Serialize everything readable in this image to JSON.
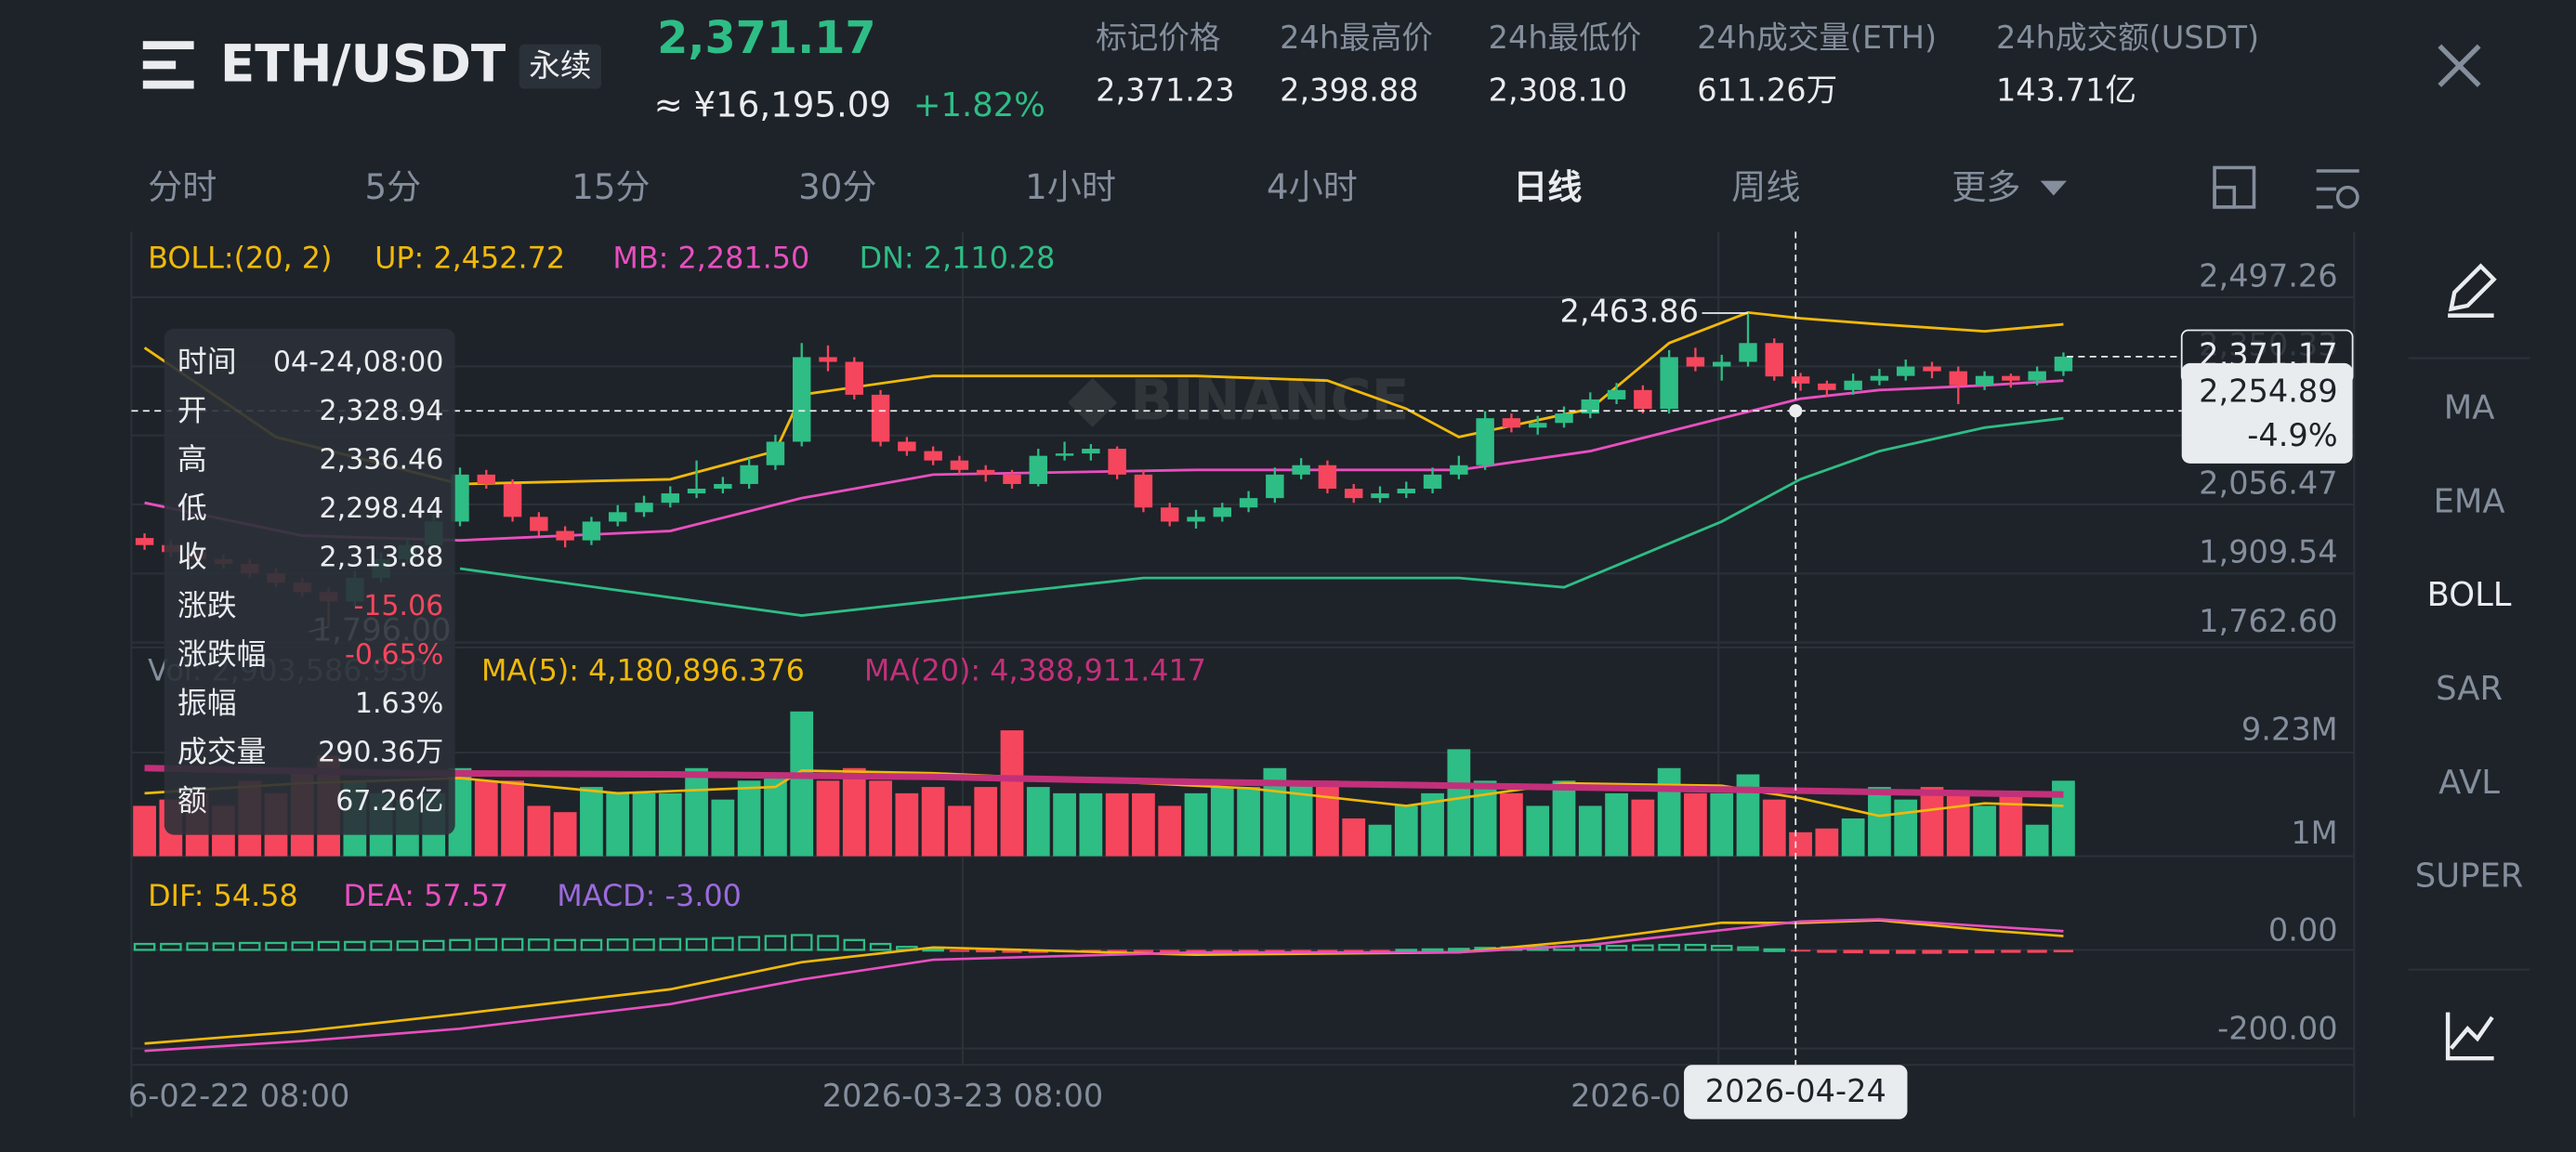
{
  "header": {
    "symbol": "ETH/USDT",
    "contract_tag": "永续",
    "last_price": "2,371.17",
    "price_cny": "≈ ¥16,195.09",
    "change": "+1.82%",
    "stats": [
      {
        "label": "标记价格",
        "value": "2,371.23"
      },
      {
        "label": "24h最高价",
        "value": "2,398.88"
      },
      {
        "label": "24h最低价",
        "value": "2,308.10"
      },
      {
        "label": "24h成交量(ETH)",
        "value": "611.26万"
      },
      {
        "label": "24h成交额(USDT)",
        "value": "143.71亿"
      }
    ]
  },
  "timeframes": {
    "items": [
      "分时",
      "5分",
      "15分",
      "30分",
      "1小时",
      "4小时",
      "日线",
      "周线",
      "更多"
    ],
    "active": 6
  },
  "indicators": {
    "items": [
      "MA",
      "EMA",
      "BOLL",
      "SAR",
      "AVL",
      "SUPER"
    ],
    "active": 2
  },
  "watermark": "BINANCE",
  "current_price_label": "2,371.17",
  "crosshair": {
    "price": "2,254.89",
    "change": "-4.9%",
    "date": "2026-04-24"
  },
  "x_labels": [
    "6-02-22 08:00",
    "2026-03-23 08:00",
    "2026-0"
  ],
  "tooltip": {
    "rows": [
      {
        "label": "时间",
        "value": "04-24,08:00"
      },
      {
        "label": "开",
        "value": "2,328.94"
      },
      {
        "label": "高",
        "value": "2,336.46"
      },
      {
        "label": "低",
        "value": "2,298.44"
      },
      {
        "label": "收",
        "value": "2,313.88"
      },
      {
        "label": "涨跌",
        "value": "-15.06",
        "color": "#f6465d"
      },
      {
        "label": "涨跌幅",
        "value": "-0.65%",
        "color": "#f6465d"
      },
      {
        "label": "振幅",
        "value": "1.63%"
      },
      {
        "label": "成交量",
        "value": "290.36万"
      },
      {
        "label": "额",
        "value": "67.26亿"
      }
    ]
  },
  "chart_data": [
    {
      "type": "candlestick",
      "legend": [
        {
          "text": "BOLL:(20, 2)",
          "color": "#f0b90b"
        },
        {
          "text": "UP: 2,452.72",
          "color": "#f0b90b"
        },
        {
          "text": "MB: 2,281.50",
          "color": "#e84fbf"
        },
        {
          "text": "DN: 2,110.28",
          "color": "#2ebd85"
        }
      ],
      "up_color": "#2ebd85",
      "down_color": "#f6465d",
      "candles": [
        [
          1985,
          1995,
          1960,
          1970
        ],
        [
          1970,
          1980,
          1945,
          1955
        ],
        [
          1955,
          1965,
          1930,
          1940
        ],
        [
          1940,
          1950,
          1920,
          1930
        ],
        [
          1930,
          1940,
          1900,
          1910
        ],
        [
          1910,
          1920,
          1880,
          1890
        ],
        [
          1890,
          1900,
          1860,
          1870
        ],
        [
          1870,
          1880,
          1796,
          1850
        ],
        [
          1850,
          1915,
          1840,
          1900
        ],
        [
          1900,
          1955,
          1890,
          1940
        ],
        [
          1940,
          1985,
          1930,
          1970
        ],
        [
          1970,
          2035,
          1960,
          2020
        ],
        [
          2020,
          2135,
          2010,
          2120
        ],
        [
          2120,
          2130,
          2090,
          2100
        ],
        [
          2100,
          2110,
          2020,
          2030
        ],
        [
          2030,
          2040,
          1990,
          2000
        ],
        [
          2000,
          2010,
          1965,
          1980
        ],
        [
          1980,
          2030,
          1970,
          2020
        ],
        [
          2020,
          2055,
          2010,
          2040
        ],
        [
          2040,
          2075,
          2030,
          2060
        ],
        [
          2060,
          2095,
          2050,
          2080
        ],
        [
          2080,
          2150,
          2070,
          2090
        ],
        [
          2090,
          2115,
          2080,
          2100
        ],
        [
          2100,
          2155,
          2090,
          2140
        ],
        [
          2140,
          2205,
          2130,
          2190
        ],
        [
          2190,
          2400,
          2180,
          2370
        ],
        [
          2370,
          2395,
          2340,
          2360
        ],
        [
          2360,
          2370,
          2280,
          2290
        ],
        [
          2290,
          2300,
          2180,
          2190
        ],
        [
          2190,
          2200,
          2160,
          2170
        ],
        [
          2170,
          2180,
          2140,
          2150
        ],
        [
          2150,
          2160,
          2120,
          2130
        ],
        [
          2130,
          2140,
          2105,
          2120
        ],
        [
          2120,
          2130,
          2090,
          2100
        ],
        [
          2100,
          2175,
          2095,
          2160
        ],
        [
          2160,
          2190,
          2150,
          2165
        ],
        [
          2165,
          2185,
          2150,
          2175
        ],
        [
          2175,
          2180,
          2110,
          2120
        ],
        [
          2120,
          2130,
          2040,
          2050
        ],
        [
          2050,
          2060,
          2010,
          2020
        ],
        [
          2020,
          2045,
          2005,
          2030
        ],
        [
          2030,
          2060,
          2020,
          2050
        ],
        [
          2050,
          2085,
          2040,
          2070
        ],
        [
          2070,
          2135,
          2060,
          2120
        ],
        [
          2120,
          2155,
          2110,
          2140
        ],
        [
          2140,
          2150,
          2080,
          2090
        ],
        [
          2090,
          2100,
          2060,
          2070
        ],
        [
          2070,
          2095,
          2060,
          2080
        ],
        [
          2080,
          2105,
          2070,
          2090
        ],
        [
          2090,
          2135,
          2080,
          2120
        ],
        [
          2120,
          2160,
          2110,
          2140
        ],
        [
          2140,
          2255,
          2130,
          2240
        ],
        [
          2240,
          2250,
          2210,
          2220
        ],
        [
          2220,
          2245,
          2205,
          2230
        ],
        [
          2230,
          2265,
          2220,
          2250
        ],
        [
          2250,
          2295,
          2240,
          2280
        ],
        [
          2280,
          2315,
          2270,
          2300
        ],
        [
          2300,
          2310,
          2250,
          2260
        ],
        [
          2260,
          2385,
          2250,
          2370
        ],
        [
          2370,
          2390,
          2340,
          2350
        ],
        [
          2350,
          2375,
          2320,
          2360
        ],
        [
          2360,
          2463.86,
          2350,
          2400
        ],
        [
          2400,
          2410,
          2320,
          2328.94
        ],
        [
          2328.94,
          2336.46,
          2298.44,
          2313.88
        ],
        [
          2313.88,
          2320,
          2285,
          2300
        ],
        [
          2300,
          2335,
          2290,
          2320
        ],
        [
          2320,
          2345,
          2310,
          2330
        ],
        [
          2330,
          2365,
          2320,
          2350
        ],
        [
          2350,
          2360,
          2325,
          2340
        ],
        [
          2340,
          2350,
          2270,
          2310
        ],
        [
          2310,
          2340,
          2300,
          2330
        ],
        [
          2330,
          2335,
          2305,
          2320
        ],
        [
          2320,
          2350,
          2310,
          2340
        ],
        [
          2340,
          2380,
          2330,
          2371.17
        ]
      ],
      "lines": [
        {
          "color": "#f0b90b",
          "x": [
            0,
            5,
            12,
            20,
            24,
            25,
            30,
            40,
            45,
            48,
            50,
            55,
            58,
            61,
            63,
            66,
            70,
            73
          ],
          "values": [
            2390,
            2200,
            2100,
            2110,
            2170,
            2290,
            2330,
            2330,
            2320,
            2260,
            2200,
            2260,
            2400,
            2465,
            2452.72,
            2440,
            2425,
            2440
          ]
        },
        {
          "color": "#e84fbf",
          "x": [
            0,
            6,
            12,
            20,
            25,
            30,
            40,
            50,
            55,
            60,
            63,
            66,
            70,
            73
          ],
          "values": [
            2060,
            1990,
            1980,
            2000,
            2070,
            2120,
            2130,
            2130,
            2170,
            2240,
            2281.5,
            2300,
            2310,
            2320
          ]
        },
        {
          "color": "#2ebd85",
          "x": [
            12,
            25,
            38,
            50,
            54,
            60,
            63,
            66,
            70,
            73
          ],
          "values": [
            1920,
            1820,
            1900,
            1900,
            1880,
            2020,
            2110.28,
            2170,
            2220,
            2240
          ]
        }
      ],
      "annotations": [
        {
          "text": "2,463.86",
          "candle": 61
        },
        {
          "text": "1,796.00",
          "candle": 7
        }
      ],
      "ylim": [
        1752,
        2637
      ],
      "yticks": [
        {
          "value": 2497.26,
          "label": "2,497.26"
        },
        {
          "value": 2350.33,
          "label": "2,350.33"
        },
        {
          "value": 2203.4,
          "label": "2,203.40"
        },
        {
          "value": 2056.47,
          "label": "2,056.47"
        },
        {
          "value": 1909.54,
          "label": "1,909.54"
        },
        {
          "value": 1762.6,
          "label": "1,762.60"
        }
      ]
    },
    {
      "type": "volume",
      "legend": [
        {
          "text": "Vol: 2,903,586.930",
          "color": "#848e9c"
        },
        {
          "text": "MA(5): 4,180,896.376",
          "color": "#f0b90b"
        },
        {
          "text": "MA(20): 4,388,911.417",
          "color": "#c2307a"
        }
      ],
      "values": [
        5000000,
        5500000,
        6000000,
        5000000,
        7000000,
        6000000,
        8000000,
        9000000,
        7000000,
        6000000,
        5500000,
        6000000,
        8000000,
        7000000,
        7000000,
        5000000,
        4500000,
        6500000,
        6000000,
        6000000,
        6000000,
        8000000,
        5500000,
        7000000,
        7500000,
        12500000,
        7000000,
        8000000,
        7000000,
        6000000,
        6500000,
        5000000,
        6500000,
        11000000,
        6500000,
        6000000,
        6000000,
        6000000,
        6000000,
        5000000,
        6000000,
        6500000,
        6500000,
        8000000,
        7000000,
        7000000,
        4000000,
        3500000,
        5000000,
        6000000,
        9500000,
        7000000,
        6000000,
        5000000,
        7000000,
        5000000,
        6000000,
        5500000,
        8000000,
        6000000,
        6000000,
        7500000,
        5500000,
        2903586.93,
        3200000,
        4000000,
        6500000,
        5500000,
        6500000,
        6000000,
        5000000,
        6000000,
        3500000,
        7000000
      ],
      "lines": [
        {
          "color": "#f0b90b",
          "width": 1.5,
          "x": [
            0,
            6,
            12,
            18,
            24,
            25,
            30,
            36,
            42,
            48,
            54,
            60,
            63,
            66,
            70,
            73
          ],
          "values": [
            6000000,
            6800000,
            7200000,
            6000000,
            6500000,
            7800000,
            7600000,
            7000000,
            6400000,
            5000000,
            6800000,
            6600000,
            5600000,
            4200000,
            5200000,
            5000000
          ]
        },
        {
          "color": "#c2307a",
          "width": 4,
          "x": [
            0,
            10,
            20,
            30,
            40,
            50,
            60,
            66,
            73
          ],
          "values": [
            8000000,
            7600000,
            7500000,
            7300000,
            6900000,
            6600000,
            6300000,
            6100000,
            5900000
          ]
        }
      ],
      "ylim": [
        1000000,
        16800000
      ],
      "yticks": [
        {
          "value": 9230000,
          "label": "9.23M"
        },
        {
          "value": 1000000,
          "label": "1M"
        }
      ]
    },
    {
      "type": "macd",
      "legend": [
        {
          "text": "DIF: 54.58",
          "color": "#f0b90b"
        },
        {
          "text": "DEA: 57.57",
          "color": "#e84fbf"
        },
        {
          "text": "MACD: -3.00",
          "color": "#9c6ade"
        }
      ],
      "values": [
        12,
        12,
        13,
        13,
        14,
        14,
        15,
        16,
        16,
        17,
        17,
        18,
        20,
        22,
        22,
        21,
        20,
        20,
        21,
        21,
        22,
        22,
        24,
        26,
        28,
        30,
        28,
        20,
        12,
        6,
        2,
        -4,
        -5,
        -6,
        -6,
        -5,
        -4,
        -4,
        -5,
        -6,
        -5,
        -4,
        -3,
        -2,
        -1,
        -2,
        -2,
        -1,
        0,
        1,
        2,
        4,
        5,
        6,
        7,
        8,
        8,
        9,
        10,
        10,
        8,
        5,
        1,
        -3,
        -6,
        -7,
        -8,
        -8,
        -8,
        -7,
        -7,
        -6,
        -6,
        -5
      ],
      "lines": [
        {
          "color": "#f0b90b",
          "width": 1.5,
          "x": [
            0,
            6,
            12,
            20,
            25,
            30,
            40,
            50,
            55,
            60,
            63,
            66,
            70,
            73
          ],
          "values": [
            -190,
            -165,
            -130,
            -80,
            -25,
            5,
            -10,
            -5,
            20,
            55,
            54.58,
            60,
            40,
            28
          ]
        },
        {
          "color": "#e84fbf",
          "width": 1.5,
          "x": [
            0,
            6,
            12,
            20,
            25,
            30,
            40,
            50,
            55,
            60,
            63,
            66,
            70,
            73
          ],
          "values": [
            -205,
            -185,
            -160,
            -110,
            -60,
            -20,
            -5,
            -5,
            10,
            40,
            57.57,
            62,
            48,
            38
          ]
        }
      ],
      "ylim": [
        -233.33,
        160
      ],
      "yticks": [
        {
          "value": 0,
          "label": "0.00"
        },
        {
          "value": -200,
          "label": "-200.00"
        }
      ]
    }
  ]
}
